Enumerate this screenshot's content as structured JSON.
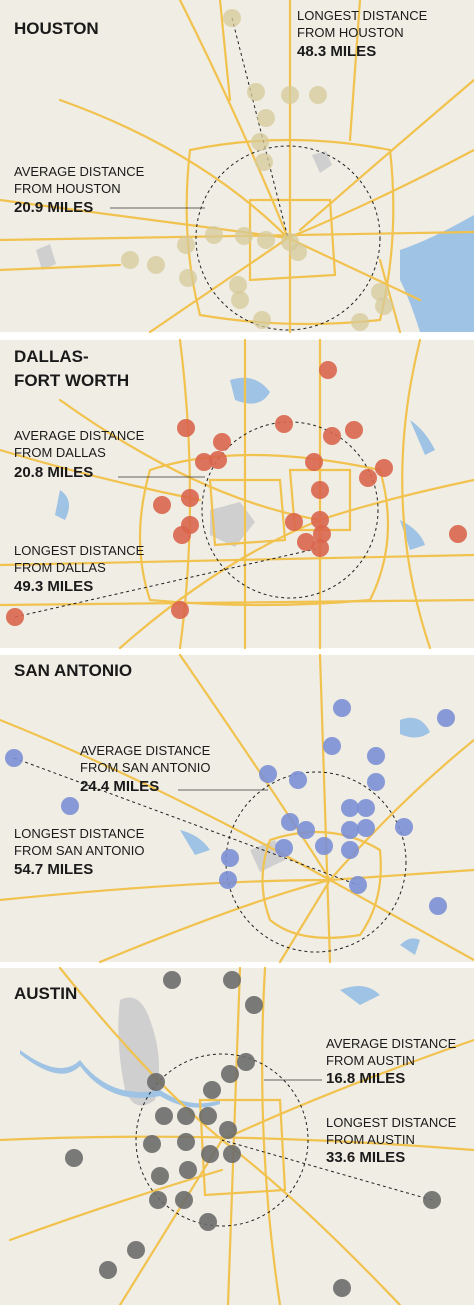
{
  "panels": [
    {
      "title": [
        "HOUSTON"
      ],
      "average": {
        "label": [
          "AVERAGE DISTANCE",
          "FROM HOUSTON"
        ],
        "value": "20.9 MILES"
      },
      "longest": {
        "label": [
          "LONGEST DISTANCE",
          "FROM HOUSTON"
        ],
        "value": "48.3 MILES"
      }
    },
    {
      "title": [
        "DALLAS-",
        "FORT WORTH"
      ],
      "average": {
        "label": [
          "AVERAGE DISTANCE",
          "FROM DALLAS"
        ],
        "value": "20.8 MILES"
      },
      "longest": {
        "label": [
          "LONGEST DISTANCE",
          "FROM DALLAS"
        ],
        "value": "49.3 MILES"
      }
    },
    {
      "title": [
        "SAN ANTONIO"
      ],
      "average": {
        "label": [
          "AVERAGE DISTANCE",
          "FROM SAN ANTONIO"
        ],
        "value": "24.4 MILES"
      },
      "longest": {
        "label": [
          "LONGEST DISTANCE",
          "FROM SAN ANTONIO"
        ],
        "value": "54.7 MILES"
      }
    },
    {
      "title": [
        "AUSTIN"
      ],
      "average": {
        "label": [
          "AVERAGE DISTANCE",
          "FROM AUSTIN"
        ],
        "value": "16.8 MILES"
      },
      "longest": {
        "label": [
          "LONGEST DISTANCE",
          "FROM AUSTIN"
        ],
        "value": "33.6 MILES"
      }
    }
  ]
}
